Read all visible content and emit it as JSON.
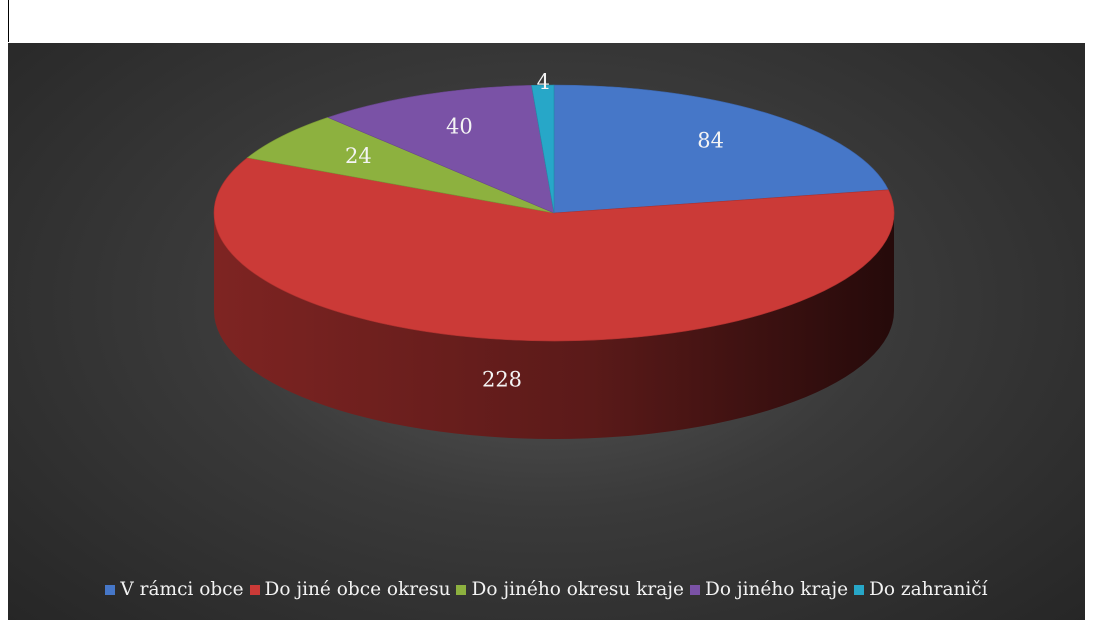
{
  "chart_data": {
    "type": "pie",
    "title": "",
    "categories": [
      "V rámci obce",
      "Do jiné obce okresu",
      "Do jiného okresu kraje",
      "Do jiného kraje",
      "Do zahraničí"
    ],
    "values": [
      84,
      228,
      24,
      40,
      4
    ],
    "data_labels": [
      "84",
      "228",
      "24",
      "40",
      "4"
    ],
    "colors": [
      "#4677c8",
      "#cb3a37",
      "#8db13f",
      "#7a52a6",
      "#27a7c8"
    ],
    "style": "3d",
    "legend_position": "bottom"
  }
}
